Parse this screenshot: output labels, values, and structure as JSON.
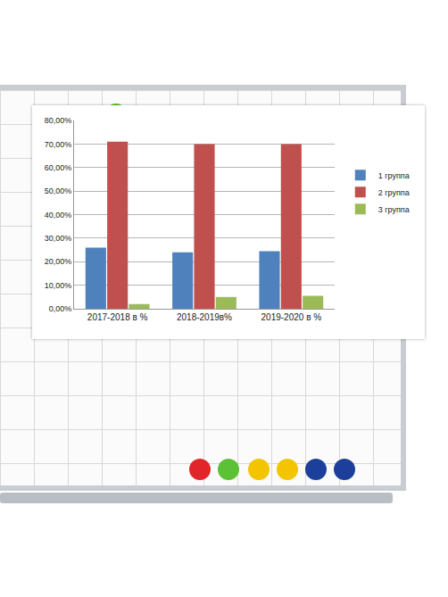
{
  "chart_data": {
    "type": "bar",
    "categories": [
      "2017-2018 в %",
      "2018-2019в%",
      "2019-2020 в %"
    ],
    "series": [
      {
        "name": "1 группа",
        "color": "#4f81bd",
        "values": [
          26,
          24,
          24.5
        ]
      },
      {
        "name": "2 группа",
        "color": "#c0504d",
        "values": [
          71,
          70,
          70
        ]
      },
      {
        "name": "3 группа",
        "color": "#9bbb59",
        "values": [
          2,
          5,
          5.5
        ]
      }
    ],
    "ylim": [
      0,
      80
    ],
    "yticks": [
      {
        "value": 0,
        "label": "0,00%"
      },
      {
        "value": 10,
        "label": "10,00%"
      },
      {
        "value": 20,
        "label": "20,00%"
      },
      {
        "value": 30,
        "label": "30,00%"
      },
      {
        "value": 40,
        "label": "40,00%"
      },
      {
        "value": 50,
        "label": "50,00%"
      },
      {
        "value": 60,
        "label": "60,00%"
      },
      {
        "value": 70,
        "label": "70,00%"
      },
      {
        "value": 80,
        "label": "80,00%"
      }
    ],
    "grid": true,
    "legend": "right"
  }
}
